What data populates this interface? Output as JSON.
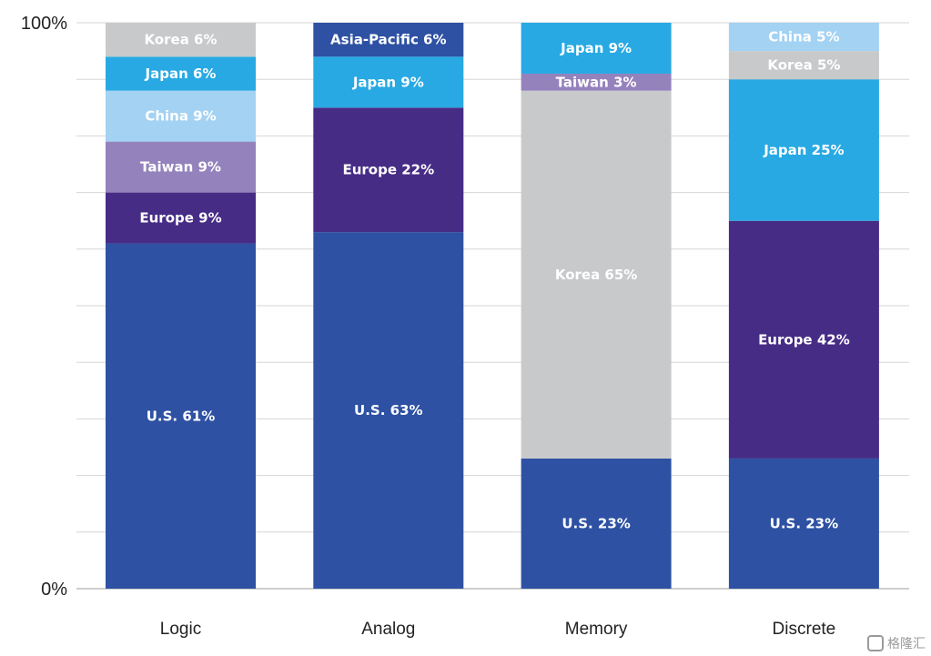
{
  "chart_data": {
    "type": "bar",
    "stacked": true,
    "orientation": "vertical",
    "ylim": [
      0,
      100
    ],
    "y_tick_labels": [
      "0%",
      "100%"
    ],
    "grid": true,
    "legend": "none",
    "categories": [
      {
        "name": "Logic",
        "segments": [
          {
            "label": "U.S. 61%",
            "value": 61,
            "color": "#2e51a3"
          },
          {
            "label": "Europe 9%",
            "value": 9,
            "color": "#472c86"
          },
          {
            "label": "Taiwan 9%",
            "value": 9,
            "color": "#9482bc"
          },
          {
            "label": "China 9%",
            "value": 9,
            "color": "#a3d2f2"
          },
          {
            "label": "Japan 6%",
            "value": 6,
            "color": "#28a9e3"
          },
          {
            "label": "Korea 6%",
            "value": 6,
            "color": "#c8c9cb"
          }
        ]
      },
      {
        "name": "Analog",
        "segments": [
          {
            "label": "U.S. 63%",
            "value": 63,
            "color": "#2e51a3"
          },
          {
            "label": "Europe 22%",
            "value": 22,
            "color": "#472c86"
          },
          {
            "label": "Japan 9%",
            "value": 9,
            "color": "#28a9e3"
          },
          {
            "label": "Asia-Pacific 6%",
            "value": 6,
            "color": "#2e51a3"
          }
        ]
      },
      {
        "name": "Memory",
        "segments": [
          {
            "label": "U.S. 23%",
            "value": 23,
            "color": "#2e51a3"
          },
          {
            "label": "Korea 65%",
            "value": 65,
            "color": "#c8c9cb"
          },
          {
            "label": "Taiwan 3%",
            "value": 3,
            "color": "#9482bc"
          },
          {
            "label": "Japan 9%",
            "value": 9,
            "color": "#28a9e3"
          }
        ]
      },
      {
        "name": "Discrete",
        "segments": [
          {
            "label": "U.S. 23%",
            "value": 23,
            "color": "#2e51a3"
          },
          {
            "label": "Europe 42%",
            "value": 42,
            "color": "#472c86"
          },
          {
            "label": "Japan 25%",
            "value": 25,
            "color": "#28a9e3"
          },
          {
            "label": "Korea 5%",
            "value": 5,
            "color": "#c8c9cb"
          },
          {
            "label": "China 5%",
            "value": 5,
            "color": "#a3d2f2"
          }
        ]
      }
    ]
  },
  "watermark": {
    "text": "格隆汇",
    "icon": "gelonghui-logo-icon"
  }
}
